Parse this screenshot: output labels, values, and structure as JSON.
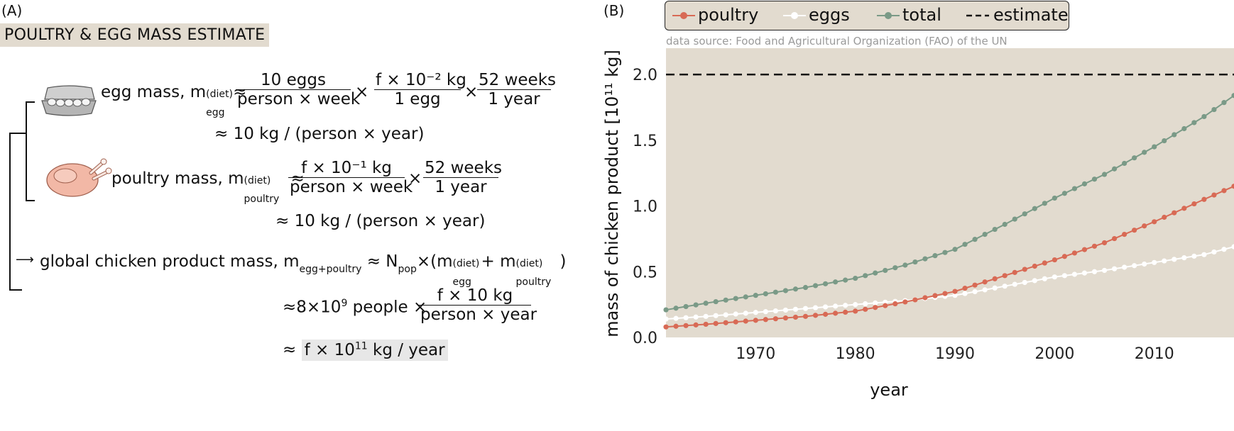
{
  "panel_a": {
    "label": "(A)",
    "title": "POULTRY & EGG MASS ESTIMATE",
    "egg": {
      "prefix": "egg mass, m",
      "sup": "(diet)",
      "sub": "egg",
      "approx": "≈",
      "frac1_num": "10 eggs",
      "frac1_den": "person × week",
      "times": "×",
      "frac2_num": "f × 10⁻² kg",
      "frac2_den": "1 egg",
      "frac3_num": "52 weeks",
      "frac3_den": "1 year",
      "result": "≈ 10 kg / (person × year)"
    },
    "poultry": {
      "prefix": "poultry mass, m",
      "sup": "(diet)",
      "sub": "poultry",
      "approx": "≈",
      "frac1_num": "f × 10⁻¹ kg",
      "frac1_den": "person × week",
      "times": "×",
      "frac2_num": "52 weeks",
      "frac2_den": "1 year",
      "result": "≈ 10 kg / (person × year)"
    },
    "global": {
      "arrow": "⟶",
      "prefix": "global chicken product mass, m",
      "sub": "egg+poultry",
      "mid": " ≈ N",
      "sub_pop": "pop",
      "open": "×(m",
      "sup1": "(diet)",
      "sub1": "egg",
      "plus": "+ m",
      "sup2": "(diet)",
      "sub2": "poultry",
      "close": ")",
      "line2_prefix": "≈8×10",
      "line2_exp": "9",
      "line2_people": " people ×",
      "frac_num": "f × 10 kg",
      "frac_den": "person × year",
      "line3_approx": "≈",
      "line3_result_a": "f × 10",
      "line3_exp": "11",
      "line3_result_b": " kg / year"
    }
  },
  "panel_b": {
    "label": "(B)",
    "legend": [
      {
        "name": "poultry",
        "color": "#d86a55",
        "style": "dot"
      },
      {
        "name": "eggs",
        "color": "#ffffff",
        "style": "dot"
      },
      {
        "name": "total",
        "color": "#7a9a87",
        "style": "dot"
      },
      {
        "name": "estimate",
        "color": "#111111",
        "style": "dash"
      }
    ],
    "source": "data source: Food and Agricultural Organization (FAO) of the UN"
  },
  "chart_data": {
    "type": "line",
    "xlabel": "year",
    "ylabel": "mass of chicken product [10¹¹ kg]",
    "xlim": [
      1961,
      2018
    ],
    "ylim": [
      0,
      2.2
    ],
    "xticks": [
      1970,
      1980,
      1990,
      2000,
      2010
    ],
    "yticks": [
      0.0,
      0.5,
      1.0,
      1.5,
      2.0
    ],
    "ytick_labels": [
      "0.0",
      "0.5",
      "1.0",
      "1.5",
      "2.0"
    ],
    "grid": false,
    "background": "#e2dbcf",
    "anchor_years": [
      1961,
      1965,
      1970,
      1975,
      1980,
      1985,
      1990,
      1995,
      2000,
      2005,
      2010,
      2015,
      2018
    ],
    "series": [
      {
        "name": "poultry",
        "color": "#d86a55",
        "values": [
          0.08,
          0.1,
          0.13,
          0.16,
          0.2,
          0.27,
          0.35,
          0.47,
          0.59,
          0.72,
          0.88,
          1.05,
          1.15
        ]
      },
      {
        "name": "eggs",
        "color": "#ffffff",
        "values": [
          0.14,
          0.16,
          0.19,
          0.22,
          0.25,
          0.28,
          0.32,
          0.39,
          0.46,
          0.51,
          0.57,
          0.63,
          0.69
        ]
      },
      {
        "name": "total",
        "color": "#7a9a87",
        "values": [
          0.21,
          0.26,
          0.32,
          0.38,
          0.45,
          0.55,
          0.67,
          0.86,
          1.06,
          1.24,
          1.45,
          1.68,
          1.84
        ]
      }
    ],
    "estimate": {
      "name": "estimate",
      "value": 2.0,
      "color": "#111111"
    }
  }
}
